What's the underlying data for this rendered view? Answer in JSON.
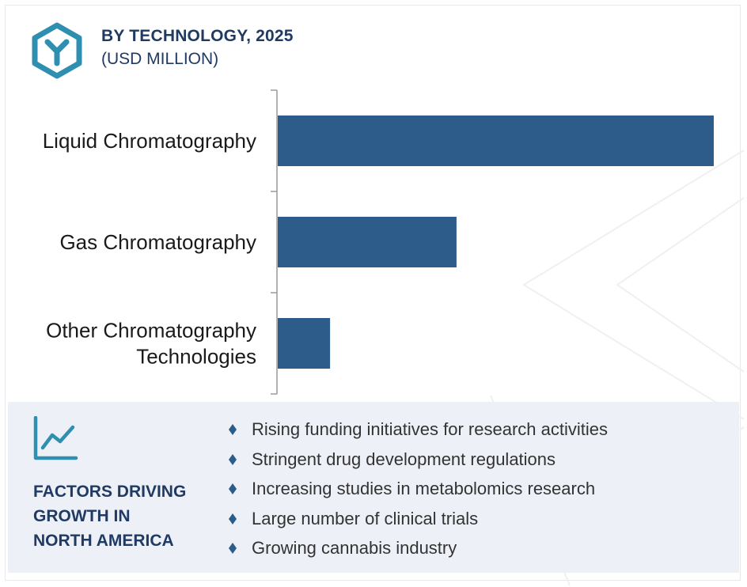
{
  "header": {
    "title": "BY TECHNOLOGY, 2025",
    "subtitle": "(USD MILLION)"
  },
  "colors": {
    "bar": "#2d5b8a",
    "accent": "#2f8fb0",
    "heading": "#1f3a63",
    "factors_bg": "#eef0f7"
  },
  "icons": {
    "header": "y-hexagon-icon",
    "factors": "trend-chart-icon",
    "bullet": "diamond-bullet-icon"
  },
  "chart_data": {
    "type": "bar",
    "orientation": "horizontal",
    "categories": [
      "Liquid Chromatography",
      "Gas Chromatography",
      "Other Chromatography Technologies"
    ],
    "category_lines": [
      [
        "Liquid Chromatography"
      ],
      [
        "Gas Chromatography"
      ],
      [
        "Other Chromatography",
        "Technologies"
      ]
    ],
    "values": [
      100,
      41,
      12
    ],
    "xlim": [
      0,
      100
    ],
    "value_axis_visible": false,
    "grid": false,
    "legend": "none"
  },
  "factors": {
    "title_lines": [
      "FACTORS DRIVING",
      "GROWTH IN",
      "NORTH AMERICA"
    ],
    "items": [
      "Rising funding initiatives for research activities",
      "Stringent drug development regulations",
      "Increasing studies in metabolomics research",
      "Large number of clinical trials",
      "Growing cannabis industry"
    ]
  }
}
